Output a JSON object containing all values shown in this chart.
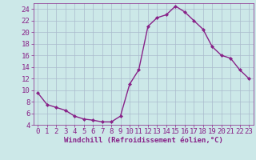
{
  "x": [
    0,
    1,
    2,
    3,
    4,
    5,
    6,
    7,
    8,
    9,
    10,
    11,
    12,
    13,
    14,
    15,
    16,
    17,
    18,
    19,
    20,
    21,
    22,
    23
  ],
  "y": [
    9.5,
    7.5,
    7.0,
    6.5,
    5.5,
    5.0,
    4.8,
    4.5,
    4.5,
    5.5,
    11.0,
    13.5,
    21.0,
    22.5,
    23.0,
    24.5,
    23.5,
    22.0,
    20.5,
    17.5,
    16.0,
    15.5,
    13.5,
    12.0
  ],
  "line_color": "#882288",
  "marker": "D",
  "marker_size": 2.0,
  "bg_color": "#cce8e8",
  "grid_color": "#aabbcc",
  "xlabel": "Windchill (Refroidissement éolien,°C)",
  "xlabel_color": "#882288",
  "tick_color": "#882288",
  "label_color": "#882288",
  "ylim": [
    4,
    25
  ],
  "xlim": [
    -0.5,
    23.5
  ],
  "yticks": [
    4,
    6,
    8,
    10,
    12,
    14,
    16,
    18,
    20,
    22,
    24
  ],
  "xticks": [
    0,
    1,
    2,
    3,
    4,
    5,
    6,
    7,
    8,
    9,
    10,
    11,
    12,
    13,
    14,
    15,
    16,
    17,
    18,
    19,
    20,
    21,
    22,
    23
  ],
  "tick_fontsize": 6.5,
  "xlabel_fontsize": 6.5,
  "linewidth": 1.0
}
